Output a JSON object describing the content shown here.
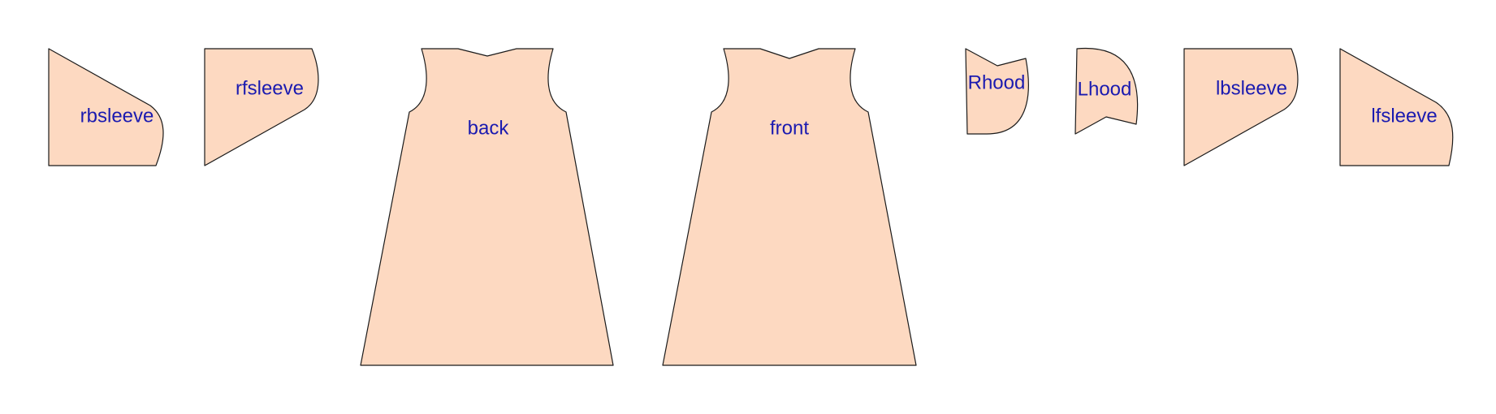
{
  "pattern": {
    "fill_color": "#fdd9c1",
    "outline_color": "#1a1a1a",
    "label_color": "#1a1ab0",
    "pieces": [
      {
        "id": "rbsleeve",
        "label": "rbsleeve"
      },
      {
        "id": "rfsleeve",
        "label": "rfsleeve"
      },
      {
        "id": "back",
        "label": "back"
      },
      {
        "id": "front",
        "label": "front"
      },
      {
        "id": "rhood",
        "label": "Rhood"
      },
      {
        "id": "lhood",
        "label": "Lhood"
      },
      {
        "id": "lbsleeve",
        "label": "lbsleeve"
      },
      {
        "id": "lfsleeve",
        "label": "lfsleeve"
      }
    ]
  }
}
